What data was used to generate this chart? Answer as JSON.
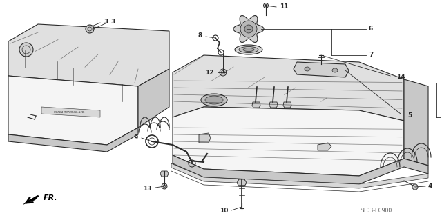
{
  "bg_color": "#ffffff",
  "line_color": "#2a2a2a",
  "diagram_code": "SE03-E0900",
  "figsize": [
    6.4,
    3.19
  ],
  "dpi": 100,
  "fill_light": "#e0e0e0",
  "fill_mid": "#c8c8c8",
  "fill_dark": "#b0b0b0",
  "fill_white": "#f5f5f5"
}
